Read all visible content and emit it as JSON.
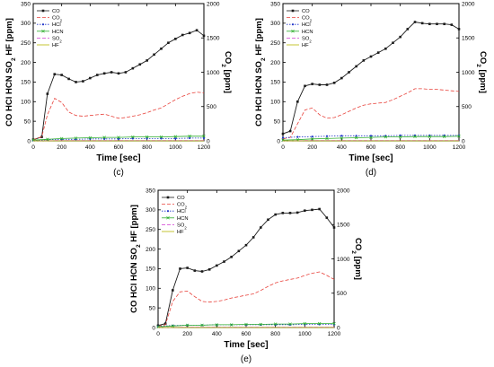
{
  "colors": {
    "CO": "#1a1a1a",
    "CO2": "#e8413a",
    "HCl": "#1f33c9",
    "HCN": "#2fae2f",
    "SO2": "#d23cd2",
    "HF": "#b8b800",
    "axis": "#000000"
  },
  "chart_data": [
    {
      "type": "line",
      "caption": "(c)",
      "xlabel": "Time [sec]",
      "ylabel_left": "CO  HCl  HCN  SO2  HF [ppm]",
      "ylabel_right": "CO2 [ppm]",
      "xlim": [
        0,
        1200
      ],
      "ylim_left": [
        0,
        350
      ],
      "ylim_right": [
        0,
        2000
      ],
      "xticks": [
        0,
        200,
        400,
        600,
        800,
        1000,
        1200
      ],
      "yticks_left": [
        0,
        50,
        100,
        150,
        200,
        250,
        300,
        350
      ],
      "yticks_right": [
        0,
        500,
        1000,
        1500,
        2000
      ],
      "legend": [
        "CO",
        "CO2",
        "HCl",
        "HCN",
        "SO2",
        "HF"
      ],
      "legend_position": "top-left",
      "series": [
        {
          "name": "CO",
          "axis": "left",
          "line": "solid",
          "marker": "square",
          "x": [
            0,
            60,
            100,
            150,
            200,
            250,
            300,
            350,
            400,
            450,
            500,
            550,
            600,
            650,
            700,
            750,
            800,
            850,
            900,
            950,
            1000,
            1050,
            1100,
            1150,
            1200
          ],
          "y": [
            3,
            10,
            120,
            170,
            168,
            158,
            150,
            152,
            160,
            168,
            172,
            175,
            172,
            175,
            185,
            195,
            205,
            220,
            235,
            250,
            260,
            270,
            275,
            282,
            268
          ]
        },
        {
          "name": "CO2",
          "axis": "right",
          "line": "dashed",
          "marker": "none",
          "x": [
            0,
            60,
            100,
            150,
            200,
            250,
            300,
            350,
            400,
            450,
            500,
            550,
            600,
            650,
            700,
            750,
            800,
            850,
            900,
            950,
            1000,
            1050,
            1100,
            1150,
            1200
          ],
          "y": [
            20,
            60,
            380,
            620,
            560,
            420,
            370,
            360,
            370,
            380,
            390,
            360,
            330,
            340,
            360,
            380,
            410,
            450,
            480,
            540,
            600,
            650,
            690,
            710,
            700
          ]
        },
        {
          "name": "HCl",
          "axis": "left",
          "line": "dotted",
          "marker": "dot",
          "x": [
            0,
            100,
            200,
            300,
            400,
            500,
            600,
            700,
            800,
            900,
            1000,
            1100,
            1200
          ],
          "y": [
            1,
            3,
            4,
            4,
            5,
            5,
            5,
            6,
            6,
            6,
            6,
            7,
            7
          ]
        },
        {
          "name": "HCN",
          "axis": "left",
          "line": "solid",
          "marker": "cross",
          "x": [
            0,
            100,
            200,
            300,
            400,
            500,
            600,
            700,
            800,
            900,
            1000,
            1100,
            1200
          ],
          "y": [
            2,
            4,
            6,
            7,
            8,
            9,
            9,
            10,
            10,
            10,
            11,
            12,
            12
          ]
        },
        {
          "name": "SO2",
          "axis": "left",
          "line": "dashed",
          "marker": "none",
          "x": [
            0,
            200,
            400,
            600,
            800,
            1000,
            1200
          ],
          "y": [
            0,
            1,
            1,
            1,
            1,
            1,
            1
          ]
        },
        {
          "name": "HF",
          "axis": "left",
          "line": "solid",
          "marker": "none",
          "x": [
            0,
            200,
            400,
            600,
            800,
            1000,
            1200
          ],
          "y": [
            0,
            0,
            0,
            0,
            0,
            0,
            0
          ]
        }
      ]
    },
    {
      "type": "line",
      "caption": "(d)",
      "xlabel": "Time [sec]",
      "ylabel_left": "CO  HCl  HCN  SO2  HF [ppm]",
      "ylabel_right": "CO2 [ppm]",
      "xlim": [
        0,
        1200
      ],
      "ylim_left": [
        0,
        350
      ],
      "ylim_right": [
        0,
        2000
      ],
      "xticks": [
        0,
        200,
        400,
        600,
        800,
        1000,
        1200
      ],
      "yticks_left": [
        0,
        50,
        100,
        150,
        200,
        250,
        300,
        350
      ],
      "yticks_right": [
        0,
        500,
        1000,
        1500,
        2000
      ],
      "legend": [
        "CO",
        "CO2",
        "HCl",
        "HCN",
        "SO2",
        "HF"
      ],
      "legend_position": "top-left",
      "series": [
        {
          "name": "CO",
          "axis": "left",
          "line": "solid",
          "marker": "square",
          "x": [
            0,
            50,
            100,
            150,
            200,
            250,
            300,
            350,
            400,
            450,
            500,
            550,
            600,
            650,
            700,
            750,
            800,
            850,
            900,
            950,
            1000,
            1050,
            1100,
            1150,
            1200
          ],
          "y": [
            18,
            25,
            100,
            140,
            145,
            143,
            143,
            148,
            160,
            175,
            190,
            205,
            215,
            225,
            235,
            250,
            265,
            285,
            303,
            300,
            298,
            298,
            298,
            296,
            285
          ]
        },
        {
          "name": "CO2",
          "axis": "right",
          "line": "dashed",
          "marker": "none",
          "x": [
            0,
            50,
            100,
            150,
            200,
            250,
            300,
            350,
            400,
            450,
            500,
            550,
            600,
            650,
            700,
            750,
            800,
            850,
            900,
            950,
            1000,
            1050,
            1100,
            1150,
            1200
          ],
          "y": [
            30,
            50,
            250,
            450,
            480,
            380,
            330,
            340,
            380,
            430,
            480,
            520,
            540,
            550,
            560,
            600,
            650,
            700,
            760,
            760,
            750,
            750,
            740,
            730,
            720
          ]
        },
        {
          "name": "HCl",
          "axis": "left",
          "line": "dotted",
          "marker": "dot",
          "x": [
            0,
            100,
            200,
            300,
            400,
            500,
            600,
            700,
            800,
            900,
            1000,
            1100,
            1200
          ],
          "y": [
            8,
            10,
            11,
            12,
            13,
            13,
            13,
            13,
            14,
            14,
            14,
            14,
            14
          ]
        },
        {
          "name": "HCN",
          "axis": "left",
          "line": "solid",
          "marker": "cross",
          "x": [
            0,
            100,
            200,
            300,
            400,
            500,
            600,
            700,
            800,
            900,
            1000,
            1100,
            1200
          ],
          "y": [
            2,
            3,
            5,
            6,
            7,
            8,
            9,
            10,
            10,
            11,
            11,
            11,
            12
          ]
        },
        {
          "name": "SO2",
          "axis": "left",
          "line": "dashed",
          "marker": "none",
          "x": [
            0,
            200,
            400,
            600,
            800,
            1000,
            1200
          ],
          "y": [
            0,
            1,
            1,
            1,
            1,
            1,
            1
          ]
        },
        {
          "name": "HF",
          "axis": "left",
          "line": "solid",
          "marker": "none",
          "x": [
            0,
            200,
            400,
            600,
            800,
            1000,
            1200
          ],
          "y": [
            0,
            0,
            0,
            0,
            0,
            0,
            0
          ]
        }
      ]
    },
    {
      "type": "line",
      "caption": "(e)",
      "xlabel": "Time [sec]",
      "ylabel_left": "CO  HCl  HCN  SO2  HF [ppm]",
      "ylabel_right": "CO2 [ppm]",
      "xlim": [
        0,
        1200
      ],
      "ylim_left": [
        0,
        350
      ],
      "ylim_right": [
        0,
        2000
      ],
      "xticks": [
        0,
        200,
        400,
        600,
        800,
        1000,
        1200
      ],
      "yticks_left": [
        0,
        50,
        100,
        150,
        200,
        250,
        300,
        350
      ],
      "yticks_right": [
        0,
        500,
        1000,
        1500,
        2000
      ],
      "legend": [
        "CO",
        "CO2",
        "HCl",
        "HCN",
        "SO2",
        "HF"
      ],
      "legend_position": "top-left",
      "series": [
        {
          "name": "CO",
          "axis": "left",
          "line": "solid",
          "marker": "square",
          "x": [
            0,
            50,
            100,
            150,
            200,
            250,
            300,
            350,
            400,
            450,
            500,
            550,
            600,
            650,
            700,
            750,
            800,
            850,
            900,
            950,
            1000,
            1050,
            1100,
            1150,
            1200
          ],
          "y": [
            5,
            10,
            95,
            150,
            152,
            145,
            143,
            148,
            158,
            168,
            180,
            195,
            210,
            230,
            255,
            275,
            288,
            292,
            292,
            293,
            298,
            300,
            302,
            280,
            255
          ]
        },
        {
          "name": "CO2",
          "axis": "right",
          "line": "dashed",
          "marker": "none",
          "x": [
            0,
            50,
            100,
            150,
            200,
            250,
            300,
            350,
            400,
            450,
            500,
            550,
            600,
            650,
            700,
            750,
            800,
            850,
            900,
            950,
            1000,
            1050,
            1100,
            1150,
            1200
          ],
          "y": [
            20,
            40,
            380,
            520,
            530,
            450,
            380,
            370,
            380,
            400,
            430,
            450,
            470,
            490,
            540,
            600,
            650,
            680,
            700,
            720,
            760,
            790,
            810,
            760,
            700
          ]
        },
        {
          "name": "HCl",
          "axis": "left",
          "line": "dotted",
          "marker": "dot",
          "x": [
            0,
            100,
            200,
            300,
            400,
            500,
            600,
            700,
            800,
            900,
            1000,
            1100,
            1200
          ],
          "y": [
            3,
            5,
            6,
            6,
            7,
            7,
            7,
            7,
            7,
            7,
            8,
            8,
            8
          ]
        },
        {
          "name": "HCN",
          "axis": "left",
          "line": "solid",
          "marker": "cross",
          "x": [
            0,
            100,
            200,
            300,
            400,
            500,
            600,
            700,
            800,
            900,
            1000,
            1100,
            1200
          ],
          "y": [
            2,
            4,
            6,
            6,
            7,
            7,
            8,
            8,
            9,
            9,
            10,
            10,
            10
          ]
        },
        {
          "name": "SO2",
          "axis": "left",
          "line": "dashed",
          "marker": "none",
          "x": [
            0,
            200,
            400,
            600,
            800,
            1000,
            1200
          ],
          "y": [
            0,
            1,
            1,
            1,
            1,
            1,
            1
          ]
        },
        {
          "name": "HF",
          "axis": "left",
          "line": "solid",
          "marker": "none",
          "x": [
            0,
            200,
            400,
            600,
            800,
            1000,
            1200
          ],
          "y": [
            0,
            0,
            0,
            0,
            0,
            0,
            0
          ]
        }
      ]
    }
  ]
}
